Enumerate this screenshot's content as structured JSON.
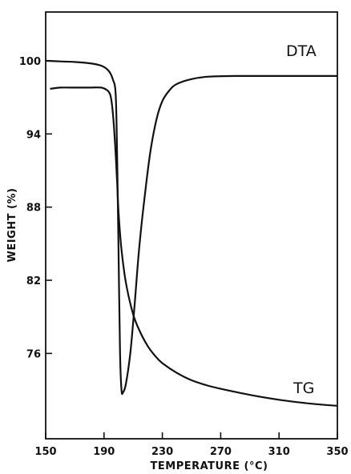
{
  "chart_data": {
    "type": "line",
    "title": "",
    "xlabel": "TEMPERATURE (°C)",
    "ylabel": "WEIGHT (%)",
    "xlim": [
      150,
      350
    ],
    "ylim": [
      69,
      104
    ],
    "xticks": [
      "150",
      "190",
      "230",
      "270",
      "310",
      "350"
    ],
    "xtick_values": [
      150,
      190,
      230,
      270,
      310,
      350
    ],
    "yticks": [
      "100",
      "94",
      "88",
      "82",
      "76"
    ],
    "ytick_values": [
      100,
      94,
      88,
      82,
      76
    ],
    "grid": false,
    "series": [
      {
        "name": "DTA",
        "x": [
          150,
          160,
          170,
          180,
          188,
          193,
          196,
          198,
          199,
          200,
          201,
          202,
          203,
          205,
          208,
          211,
          214,
          218,
          222,
          226,
          230,
          235,
          240,
          250,
          262,
          280,
          300,
          320,
          350
        ],
        "y": [
          100,
          99.95,
          99.9,
          99.8,
          99.6,
          99.2,
          98.5,
          97.2,
          92,
          84,
          76,
          73,
          72.8,
          73.5,
          76,
          80,
          84.5,
          89,
          92.7,
          95.2,
          96.7,
          97.6,
          98.1,
          98.5,
          98.7,
          98.75,
          98.75,
          98.75,
          98.75
        ]
      },
      {
        "name": "TG",
        "x": [
          153,
          160,
          170,
          180,
          188,
          192,
          194,
          195,
          196,
          197,
          198,
          199,
          200,
          202,
          205,
          210,
          215,
          220,
          225,
          230,
          240,
          250,
          260,
          270,
          290,
          310,
          330,
          350
        ],
        "y": [
          97.7,
          97.8,
          97.8,
          97.8,
          97.8,
          97.6,
          97.3,
          96.8,
          95.8,
          94.3,
          92.3,
          90,
          87.5,
          84.5,
          81.8,
          79.2,
          77.7,
          76.6,
          75.8,
          75.2,
          74.4,
          73.8,
          73.4,
          73.1,
          72.6,
          72.2,
          71.9,
          71.7
        ]
      }
    ],
    "annotations": [
      "DTA",
      "TG"
    ]
  }
}
